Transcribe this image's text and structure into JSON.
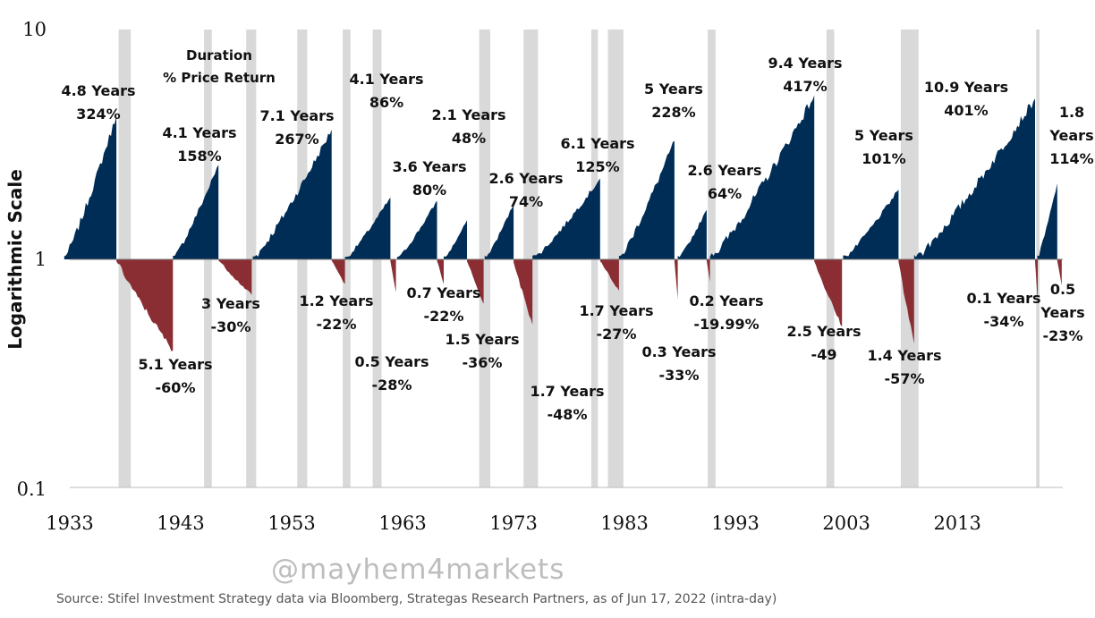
{
  "chart_data": {
    "type": "area",
    "title": "",
    "ylabel": "Logarithmic Scale",
    "xlabel": "",
    "yscale": "log",
    "ylim": [
      0.1,
      10
    ],
    "xlim": [
      1933,
      2022.5
    ],
    "x_ticks": [
      "1933",
      "1943",
      "1953",
      "1963",
      "1973",
      "1983",
      "1993",
      "2003",
      "2013"
    ],
    "y_ticks": [
      "10",
      "1",
      "0.1"
    ],
    "legend_header": {
      "line1": "Duration",
      "line2": "% Price Return"
    },
    "recessions": [
      [
        1937.4,
        1938.5
      ],
      [
        1945.1,
        1945.8
      ],
      [
        1948.9,
        1949.8
      ],
      [
        1953.5,
        1954.4
      ],
      [
        1957.6,
        1958.3
      ],
      [
        1960.3,
        1961.1
      ],
      [
        1969.9,
        1970.9
      ],
      [
        1973.9,
        1975.2
      ],
      [
        1980.0,
        1980.6
      ],
      [
        1981.5,
        1982.9
      ],
      [
        1990.5,
        1991.2
      ],
      [
        2001.2,
        2001.9
      ],
      [
        2007.9,
        2009.5
      ],
      [
        2020.1,
        2020.4
      ]
    ],
    "series": [
      {
        "name": "bull",
        "color": "#002d56",
        "periods": [
          {
            "start": 1932.5,
            "end": 1937.2,
            "return_pct": 324,
            "duration": "4.8 Years",
            "label": "324%"
          },
          {
            "start": 1942.3,
            "end": 1946.4,
            "return_pct": 158,
            "duration": "4.1 Years",
            "label": "158%"
          },
          {
            "start": 1949.5,
            "end": 1956.6,
            "return_pct": 267,
            "duration": "7.1 Years",
            "label": "267%"
          },
          {
            "start": 1957.8,
            "end": 1961.9,
            "return_pct": 86,
            "duration": "4.1 Years",
            "label": "86%"
          },
          {
            "start": 1962.5,
            "end": 1966.1,
            "return_pct": 80,
            "duration": "3.6 Years",
            "label": "80%"
          },
          {
            "start": 1966.7,
            "end": 1968.8,
            "return_pct": 48,
            "duration": "2.1 Years",
            "label": "48%"
          },
          {
            "start": 1970.4,
            "end": 1973.0,
            "return_pct": 74,
            "duration": "2.6 Years",
            "label": "74%"
          },
          {
            "start": 1974.7,
            "end": 1980.8,
            "return_pct": 125,
            "duration": "6.1 Years",
            "label": "125%"
          },
          {
            "start": 1982.5,
            "end": 1987.5,
            "return_pct": 228,
            "duration": "5 Years",
            "label": "228%"
          },
          {
            "start": 1987.8,
            "end": 1990.4,
            "return_pct": 64,
            "duration": "2.6 Years",
            "label": "64%"
          },
          {
            "start": 1990.7,
            "end": 2000.1,
            "return_pct": 417,
            "duration": "9.4 Years",
            "label": "417%"
          },
          {
            "start": 2002.7,
            "end": 2007.7,
            "return_pct": 101,
            "duration": "5 Years",
            "label": "101%"
          },
          {
            "start": 2009.1,
            "end": 2020.0,
            "return_pct": 401,
            "duration": "10.9 Years",
            "label": "401%"
          },
          {
            "start": 2020.2,
            "end": 2022.0,
            "return_pct": 114,
            "duration": "1.8 Years",
            "label": "114%"
          }
        ]
      },
      {
        "name": "bear",
        "color": "#8b2e34",
        "periods": [
          {
            "start": 1937.2,
            "end": 1942.3,
            "return_pct": -60,
            "duration": "5.1 Years",
            "label": "-60%"
          },
          {
            "start": 1946.4,
            "end": 1949.4,
            "return_pct": -30,
            "duration": "3 Years",
            "label": "-30%"
          },
          {
            "start": 1956.6,
            "end": 1957.8,
            "return_pct": -22,
            "duration": "1.2 Years",
            "label": "-22%"
          },
          {
            "start": 1961.9,
            "end": 1962.4,
            "return_pct": -28,
            "duration": "0.5 Years",
            "label": "-28%"
          },
          {
            "start": 1966.1,
            "end": 1966.7,
            "return_pct": -22,
            "duration": "0.7 Years",
            "label": "-22%"
          },
          {
            "start": 1968.8,
            "end": 1970.3,
            "return_pct": -36,
            "duration": "1.5 Years",
            "label": "-36%"
          },
          {
            "start": 1973.0,
            "end": 1974.7,
            "return_pct": -48,
            "duration": "1.7 Years",
            "label": "-48%"
          },
          {
            "start": 1980.8,
            "end": 1982.5,
            "return_pct": -27,
            "duration": "1.7 Years",
            "label": "-27%"
          },
          {
            "start": 1987.5,
            "end": 1987.8,
            "return_pct": -33,
            "duration": "0.3 Years",
            "label": "-33%"
          },
          {
            "start": 1990.4,
            "end": 1990.7,
            "return_pct": -19.99,
            "duration": "0.2 Years",
            "label": "-19.99%"
          },
          {
            "start": 2000.1,
            "end": 2002.6,
            "return_pct": -49,
            "duration": "2.5 Years",
            "label": "-49"
          },
          {
            "start": 2007.7,
            "end": 2009.1,
            "return_pct": -57,
            "duration": "1.4 Years",
            "label": "-57%"
          },
          {
            "start": 2020.0,
            "end": 2020.1,
            "return_pct": -34,
            "duration": "0.1 Years",
            "label": "-34%"
          },
          {
            "start": 2022.0,
            "end": 2022.4,
            "return_pct": -23,
            "duration": "0.5 Years",
            "label": "-23%"
          }
        ]
      }
    ]
  },
  "watermark": "@mayhem4markets",
  "source": "Source: Stifel Investment Strategy data via Bloomberg, Strategas Research Partners, as of Jun 17, 2022 (intra-day)"
}
